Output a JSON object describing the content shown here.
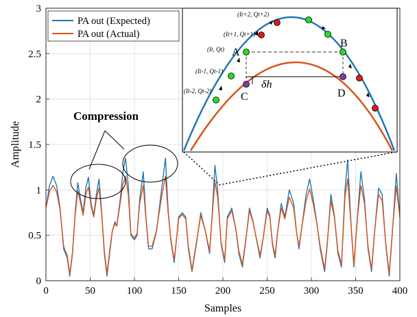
{
  "chart_data": {
    "type": "line",
    "xlabel": "Samples",
    "ylabel": "Amplitude",
    "xlim": [
      0,
      400
    ],
    "ylim": [
      0,
      3
    ],
    "xticks": [
      "0",
      "50",
      "100",
      "150",
      "200",
      "250",
      "300",
      "350",
      "400"
    ],
    "yticks": [
      "0",
      "0.5",
      "1",
      "1.5",
      "2",
      "2.5",
      "3"
    ],
    "grid": true,
    "legend_position": "top-left",
    "series": [
      {
        "name": "PA out (Expected)",
        "color": "#1f77b4",
        "x": [
          0,
          4,
          8,
          12,
          16,
          20,
          24,
          27,
          30,
          33,
          36,
          39,
          42,
          45,
          48,
          51,
          54,
          57,
          60,
          63,
          66,
          69,
          72,
          75,
          78,
          80,
          84,
          87,
          90,
          93,
          96,
          100,
          103,
          106,
          110,
          113,
          116,
          120,
          125,
          130,
          135,
          138,
          141,
          145,
          150,
          154,
          158,
          161,
          165,
          170,
          175,
          180,
          185,
          188,
          191,
          194,
          198,
          202,
          205,
          210,
          215,
          218,
          222,
          226,
          230,
          234,
          238,
          242,
          246,
          250,
          253,
          256,
          259,
          262,
          266,
          270,
          275,
          280,
          283,
          286,
          290,
          294,
          298,
          302,
          306,
          310,
          315,
          318,
          322,
          326,
          330,
          334,
          338,
          341,
          345,
          348,
          352,
          356,
          360,
          364,
          368,
          372,
          376,
          380,
          384,
          388,
          392,
          396,
          400
        ],
        "y": [
          0.8,
          1.05,
          1.15,
          1.05,
          0.8,
          0.35,
          0.25,
          0.05,
          0.3,
          0.75,
          1.08,
          0.9,
          0.75,
          1.02,
          1.14,
          0.85,
          0.72,
          0.95,
          1.12,
          0.75,
          0.3,
          0.05,
          0.3,
          0.55,
          0.65,
          0.6,
          0.9,
          1.2,
          1.35,
          1.05,
          0.5,
          0.45,
          0.5,
          0.9,
          1.2,
          0.7,
          0.35,
          0.35,
          0.55,
          0.95,
          1.35,
          0.8,
          0.45,
          0.2,
          0.7,
          0.75,
          0.7,
          0.35,
          0.1,
          0.4,
          0.75,
          0.55,
          0.3,
          0.75,
          1.27,
          1.0,
          0.4,
          0.2,
          0.7,
          0.8,
          0.55,
          0.3,
          0.15,
          0.45,
          0.8,
          0.65,
          0.45,
          0.25,
          0.5,
          0.8,
          0.72,
          0.4,
          0.25,
          0.55,
          0.85,
          0.7,
          1.0,
          0.85,
          0.55,
          0.35,
          0.65,
          0.95,
          1.12,
          0.9,
          0.65,
          0.35,
          0.1,
          0.4,
          0.95,
          0.72,
          0.3,
          0.15,
          1.0,
          1.33,
          0.6,
          0.15,
          0.7,
          1.2,
          0.9,
          0.35,
          0.1,
          0.6,
          1.02,
          0.95,
          0.4,
          0.05,
          0.6,
          1.18,
          0.7
        ]
      },
      {
        "name": "PA out (Actual)",
        "color": "#d95319",
        "x": [
          0,
          4,
          8,
          12,
          16,
          20,
          24,
          27,
          30,
          33,
          36,
          39,
          42,
          45,
          48,
          51,
          54,
          57,
          60,
          63,
          66,
          69,
          72,
          75,
          78,
          80,
          84,
          87,
          90,
          93,
          96,
          100,
          103,
          106,
          110,
          113,
          116,
          120,
          125,
          130,
          135,
          138,
          141,
          145,
          150,
          154,
          158,
          161,
          165,
          170,
          175,
          180,
          185,
          188,
          191,
          194,
          198,
          202,
          205,
          210,
          215,
          218,
          222,
          226,
          230,
          234,
          238,
          242,
          246,
          250,
          253,
          256,
          259,
          262,
          266,
          270,
          275,
          280,
          283,
          286,
          290,
          294,
          298,
          302,
          306,
          310,
          315,
          318,
          322,
          326,
          330,
          334,
          338,
          341,
          345,
          348,
          352,
          356,
          360,
          364,
          368,
          372,
          376,
          380,
          384,
          388,
          392,
          396,
          400
        ],
        "y": [
          0.8,
          0.98,
          1.05,
          0.98,
          0.78,
          0.38,
          0.28,
          0.07,
          0.32,
          0.72,
          0.99,
          0.86,
          0.72,
          0.95,
          1.03,
          0.82,
          0.7,
          0.9,
          1.02,
          0.73,
          0.33,
          0.08,
          0.33,
          0.55,
          0.63,
          0.6,
          0.86,
          1.06,
          1.15,
          0.95,
          0.52,
          0.47,
          0.52,
          0.85,
          1.05,
          0.68,
          0.38,
          0.38,
          0.56,
          0.88,
          1.15,
          0.76,
          0.47,
          0.23,
          0.68,
          0.73,
          0.68,
          0.38,
          0.12,
          0.42,
          0.72,
          0.55,
          0.33,
          0.72,
          1.09,
          0.92,
          0.42,
          0.23,
          0.68,
          0.77,
          0.55,
          0.33,
          0.18,
          0.46,
          0.77,
          0.64,
          0.46,
          0.28,
          0.5,
          0.77,
          0.7,
          0.42,
          0.28,
          0.55,
          0.8,
          0.68,
          0.92,
          0.8,
          0.55,
          0.38,
          0.64,
          0.88,
          1.01,
          0.85,
          0.64,
          0.38,
          0.13,
          0.42,
          0.88,
          0.7,
          0.33,
          0.18,
          0.92,
          1.12,
          0.59,
          0.18,
          0.68,
          1.05,
          0.85,
          0.38,
          0.13,
          0.6,
          0.95,
          0.88,
          0.42,
          0.08,
          0.6,
          1.04,
          0.7
        ]
      }
    ],
    "annotations": {
      "compression_label": "Compression"
    },
    "inset": {
      "labels": {
        "A": "A",
        "B": "B",
        "C": "C",
        "D": "D",
        "delta": "δh"
      },
      "point_labels": [
        {
          "i": "t+2",
          "text": "(I_{t+2}, Q_{t+2})"
        },
        {
          "i": "t+1",
          "text": "(I_{t+1}, Q_{t+1})"
        },
        {
          "i": "t",
          "text": "(I_t, Q_t)"
        },
        {
          "i": "t-1",
          "text": "(I_{t-1}, Q_{t-1})"
        },
        {
          "i": "t-2",
          "text": "(I_{t-2}, Q_{t-2})"
        }
      ],
      "colors": {
        "green": "#22e022",
        "red": "#e01818",
        "purple": "#7b3fa0"
      }
    }
  }
}
